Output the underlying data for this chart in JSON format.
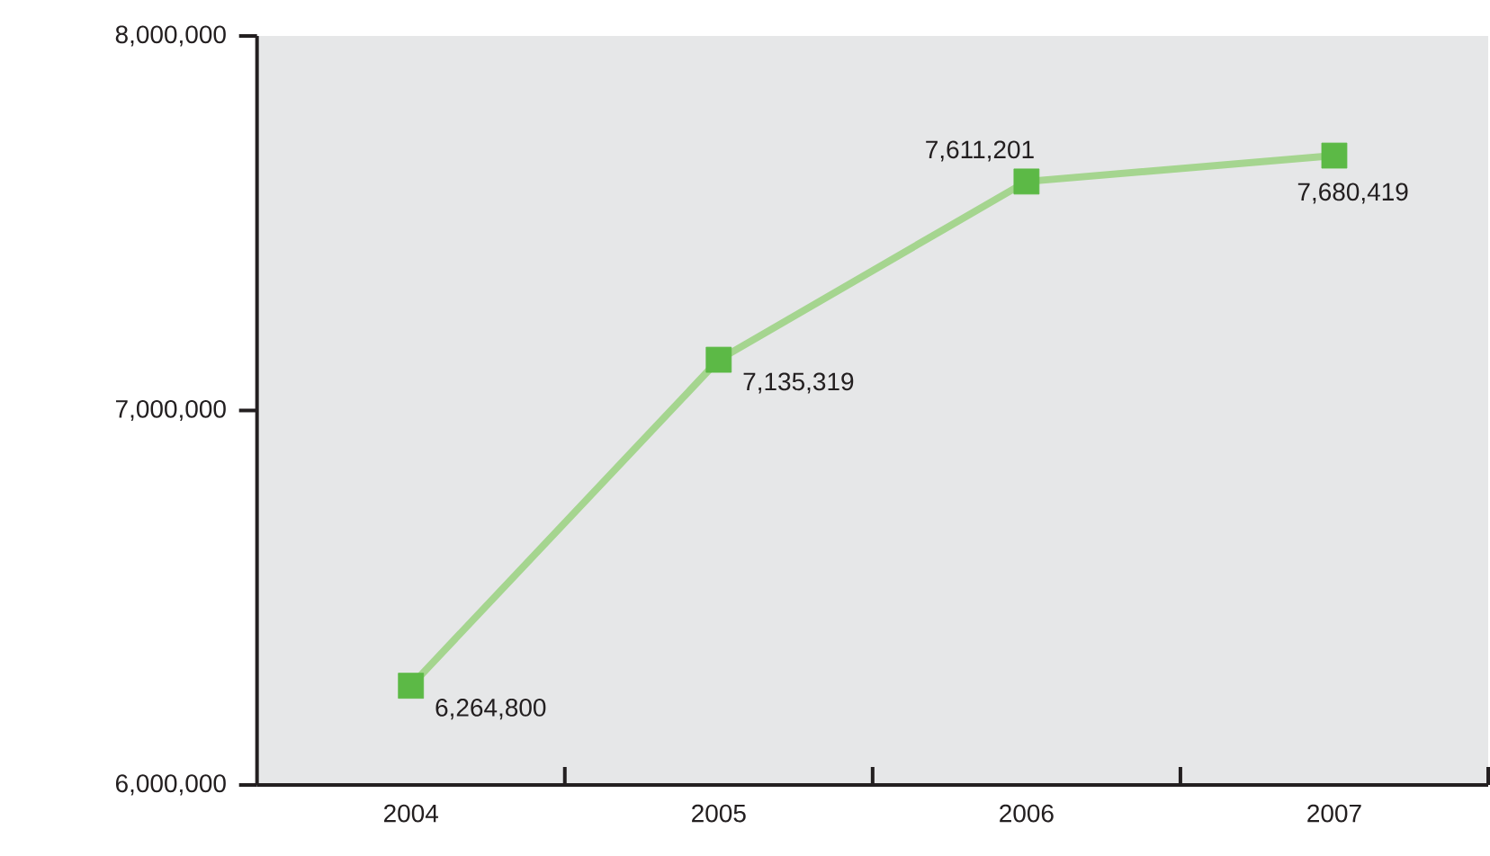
{
  "chart_data": {
    "type": "line",
    "categories": [
      "2004",
      "2005",
      "2006",
      "2007"
    ],
    "series": [
      {
        "color": "#a5d58f",
        "values": [
          6264800,
          7135319,
          7611201,
          7680419
        ],
        "colors": [
          "#5cb946",
          "#5cb946",
          "#5cb946",
          "#5cb946"
        ],
        "value_labels": [
          "6,264,800",
          "7,135,319",
          "7,611,201",
          "7,680,419"
        ]
      }
    ],
    "ylim": [
      6000000,
      8000000
    ],
    "yticks": [
      {
        "value": 6000000,
        "label": "6,000,000"
      },
      {
        "value": 7000000,
        "label": "7,000,000"
      },
      {
        "value": 8000000,
        "label": "8,000,000"
      }
    ],
    "marker": "square",
    "line_style": "solid"
  }
}
